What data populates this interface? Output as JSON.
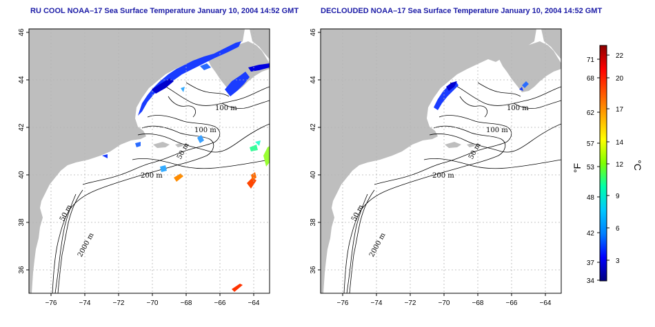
{
  "left_panel": {
    "title": "RU COOL NOAA–17 Sea Surface Temperature January 10, 2004 14:52 GMT",
    "contour_labels": [
      "100 m",
      "100 m",
      "50 m",
      "200 m",
      "50 m",
      "2000 m"
    ]
  },
  "right_panel": {
    "title": "DECLOUDED NOAA–17 Sea Surface Temperature January 10, 2004 14:52 GMT",
    "contour_labels": [
      "100 m",
      "100 m",
      "50 m",
      "200 m",
      "50 m",
      "2000 m"
    ]
  },
  "axes": {
    "lon_ticks": [
      "−76",
      "−74",
      "−72",
      "−70",
      "−68",
      "−66",
      "−64"
    ],
    "lat_ticks": [
      "36",
      "38",
      "40",
      "42",
      "44",
      "46"
    ]
  },
  "colorbar": {
    "f_unit": "°F",
    "c_unit": "°C",
    "f_ticks": [
      "71",
      "68",
      "62",
      "57",
      "53",
      "48",
      "42",
      "37",
      "34"
    ],
    "c_ticks": [
      "22",
      "20",
      "17",
      "14",
      "12",
      "9",
      "6",
      "3"
    ],
    "colors": [
      "#000080",
      "#0000ff",
      "#007fff",
      "#00c8ff",
      "#00ffaa",
      "#7fff00",
      "#ffff00",
      "#ffaa00",
      "#ff5500",
      "#ff0000",
      "#8b0000"
    ]
  },
  "colors": {
    "land": "#bebebe",
    "water": "#ffffff",
    "grid": "#b3b3b3",
    "title": "#1a1aa6"
  }
}
